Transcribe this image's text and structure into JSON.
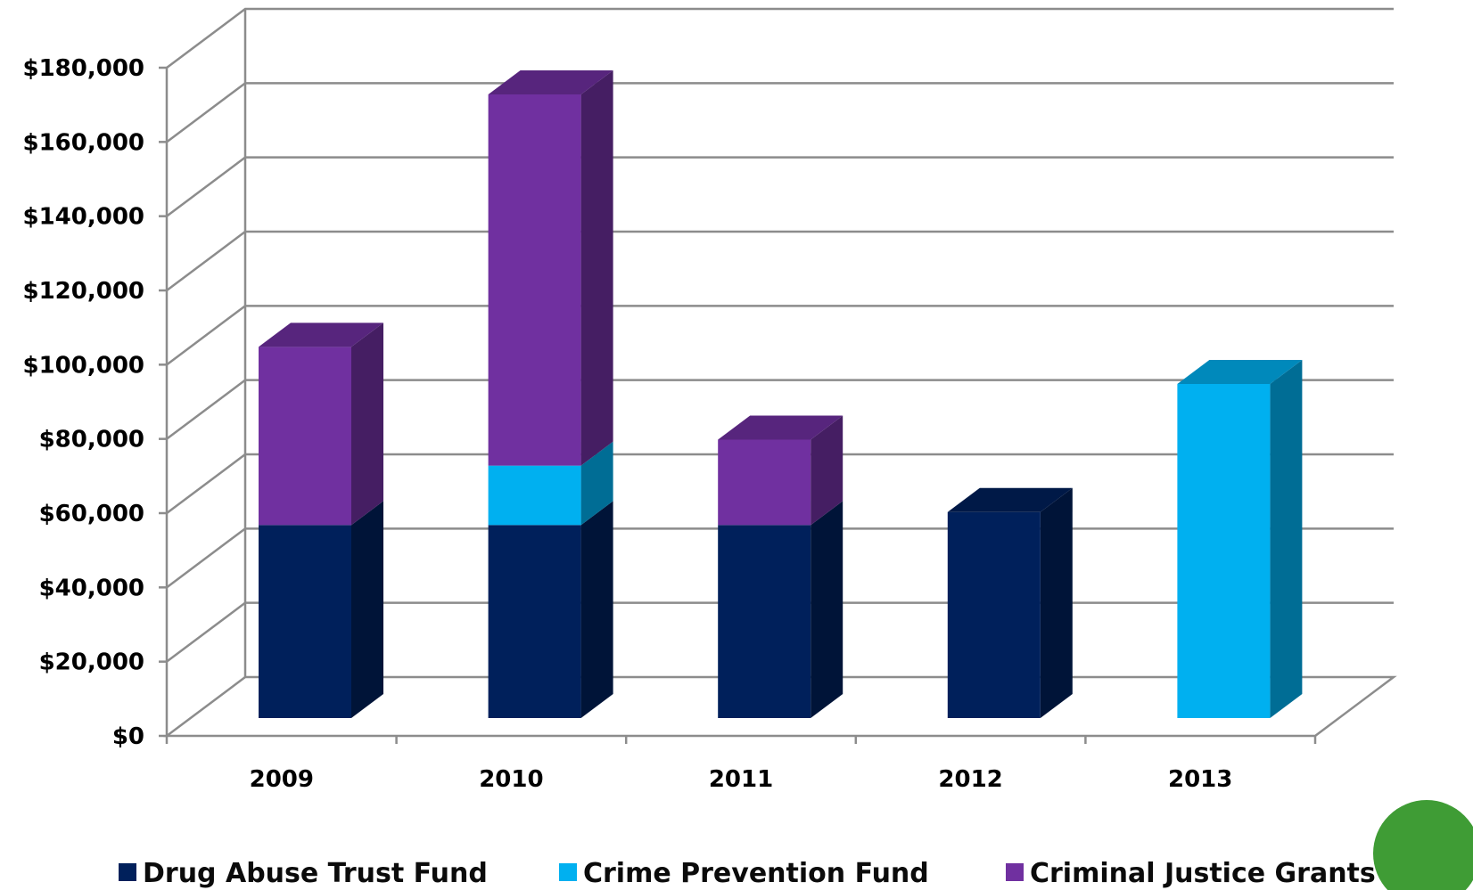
{
  "chart_data": {
    "type": "bar",
    "stacked": true,
    "three_d": true,
    "categories": [
      "2009",
      "2010",
      "2011",
      "2012",
      "2013"
    ],
    "series": [
      {
        "name": "Drug Abuse Trust Fund",
        "color": "#00205b",
        "values": [
          52000,
          52000,
          52000,
          55500,
          0
        ]
      },
      {
        "name": "Crime Prevention Fund",
        "color": "#00b0f0",
        "values": [
          0,
          16000,
          0,
          0,
          90000
        ]
      },
      {
        "name": "Criminal Justice Grants",
        "color": "#7030a0",
        "values": [
          48000,
          100000,
          23000,
          0,
          0
        ]
      }
    ],
    "ylim": [
      0,
      180000
    ],
    "yticks": [
      0,
      20000,
      40000,
      60000,
      80000,
      100000,
      120000,
      140000,
      160000,
      180000
    ],
    "ytick_labels": [
      "$0",
      "$20,000",
      "$40,000",
      "$60,000",
      "$80,000",
      "$100,000",
      "$120,000",
      "$140,000",
      "$160,000",
      "$180,000"
    ],
    "grid": true,
    "legend_position": "bottom"
  }
}
